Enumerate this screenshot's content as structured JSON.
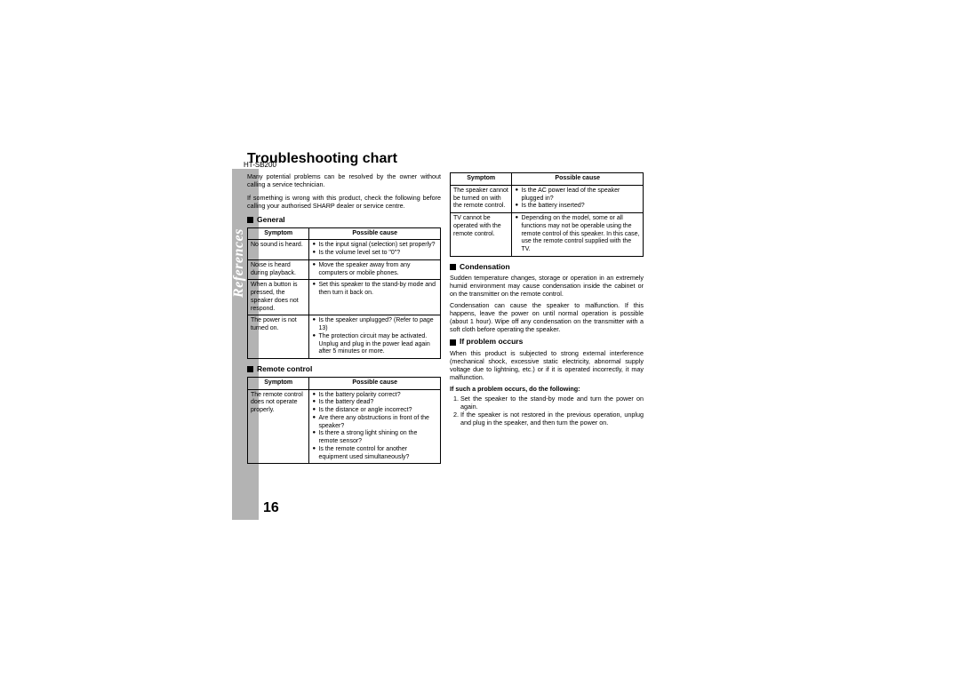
{
  "model": "HT-SB200",
  "title": "Troubleshooting chart",
  "sidebar": "References",
  "pagenum": "16",
  "intro1": "Many potential problems can be resolved by the owner without calling a service technician.",
  "intro2": "If something is wrong with this product, check the following before calling your authorised SHARP dealer or service centre.",
  "headers": {
    "symptom": "Symptom",
    "cause": "Possible cause"
  },
  "sections": {
    "general": "General",
    "remote": "Remote control",
    "condensation": "Condensation",
    "problem": "If problem occurs"
  },
  "general_rows": [
    {
      "s": "No sound is heard.",
      "c": [
        "Is the input signal (selection) set properly?",
        "Is the volume level set to \"0\"?"
      ]
    },
    {
      "s": "Noise is heard during playback.",
      "c": [
        "Move the speaker away from any computers or mobile phones."
      ]
    },
    {
      "s": "When a button is pressed, the speaker does not respond.",
      "c": [
        "Set this speaker to the stand-by mode and then turn it back on."
      ]
    },
    {
      "s": "The power is not turned on.",
      "c": [
        "Is the speaker unplugged? (Refer to page 13)",
        "The protection circuit may be activated. Unplug and plug in the power lead again after 5 minutes or more."
      ]
    }
  ],
  "remote_rows": [
    {
      "s": "The remote control does not operate properly.",
      "c": [
        "Is the battery polarity correct?",
        "Is the battery dead?",
        "Is the distance or angle incorrect?",
        "Are there any obstructions in front of the speaker?",
        "Is there a strong light shining on the remote sensor?",
        "Is the remote control for another equipment used simultaneously?"
      ]
    }
  ],
  "right_rows": [
    {
      "s": "The speaker cannot be turned on with the remote control.",
      "c": [
        "Is the AC power lead of the speaker plugged in?",
        "Is the battery inserted?"
      ]
    },
    {
      "s": "TV cannot be operated with the remote control.",
      "c": [
        "Depending on the model, some or all functions may not be operable using the remote control of this speaker. In this case, use the remote control supplied with the TV."
      ]
    }
  ],
  "cond1": "Sudden temperature changes, storage or operation in an extremely humid environment may cause condensation inside the cabinet or on the transmitter on the remote control.",
  "cond2": "Condensation can cause the speaker to malfunction. If this happens, leave the power on until normal operation is possible (about 1 hour). Wipe off any condensation on the transmitter with a soft cloth before operating the speaker.",
  "prob1": "When this product is subjected to strong external interference (mechanical shock, excessive static electricity, abnormal supply voltage due to lightning, etc.) or if it is operated incorrectly, it may malfunction.",
  "probBold": "If such a problem occurs, do the following:",
  "probList": [
    "Set the speaker to the stand-by mode and turn the power on again.",
    "If the speaker is not restored in the previous operation, unplug and plug in the speaker, and then turn the power on."
  ]
}
